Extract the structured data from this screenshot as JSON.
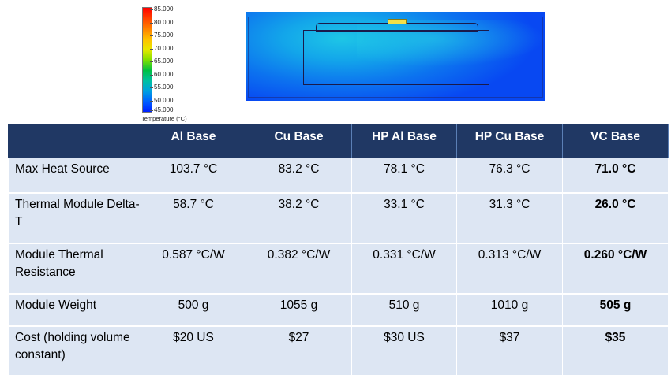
{
  "legend": {
    "ticks": [
      "85.000",
      "80.000",
      "75.000",
      "70.000",
      "65.000",
      "60.000",
      "55.000",
      "50.000",
      "45.000"
    ],
    "title": "Temperature (°C)"
  },
  "table": {
    "headers": [
      "",
      "Al Base",
      "Cu Base",
      "HP Al Base",
      "HP Cu Base",
      "VC Base"
    ],
    "rows": [
      {
        "label": "Max Heat Source",
        "values": [
          "103.7 °C",
          "83.2 °C",
          "78.1 °C",
          "76.3 °C",
          "71.0 °C"
        ]
      },
      {
        "label": "Thermal Module Delta-T",
        "values": [
          "58.7 °C",
          "38.2 °C",
          "33.1 °C",
          "31.3 °C",
          "26.0 °C"
        ]
      },
      {
        "label": "Module Thermal Resistance",
        "values": [
          "0.587 °C/W",
          "0.382 °C/W",
          "0.331 °C/W",
          "0.313 °C/W",
          "0.260 °C/W"
        ]
      },
      {
        "label": "Module Weight",
        "values": [
          "500 g",
          "1055 g",
          "510 g",
          "1010 g",
          "505 g"
        ]
      },
      {
        "label": "Cost (holding volume constant)",
        "values": [
          "$20 US",
          "$27",
          "$30 US",
          "$37",
          "$35"
        ]
      }
    ]
  },
  "colors": {
    "header_bg": "#203864",
    "row_bg": "#dde6f3"
  }
}
